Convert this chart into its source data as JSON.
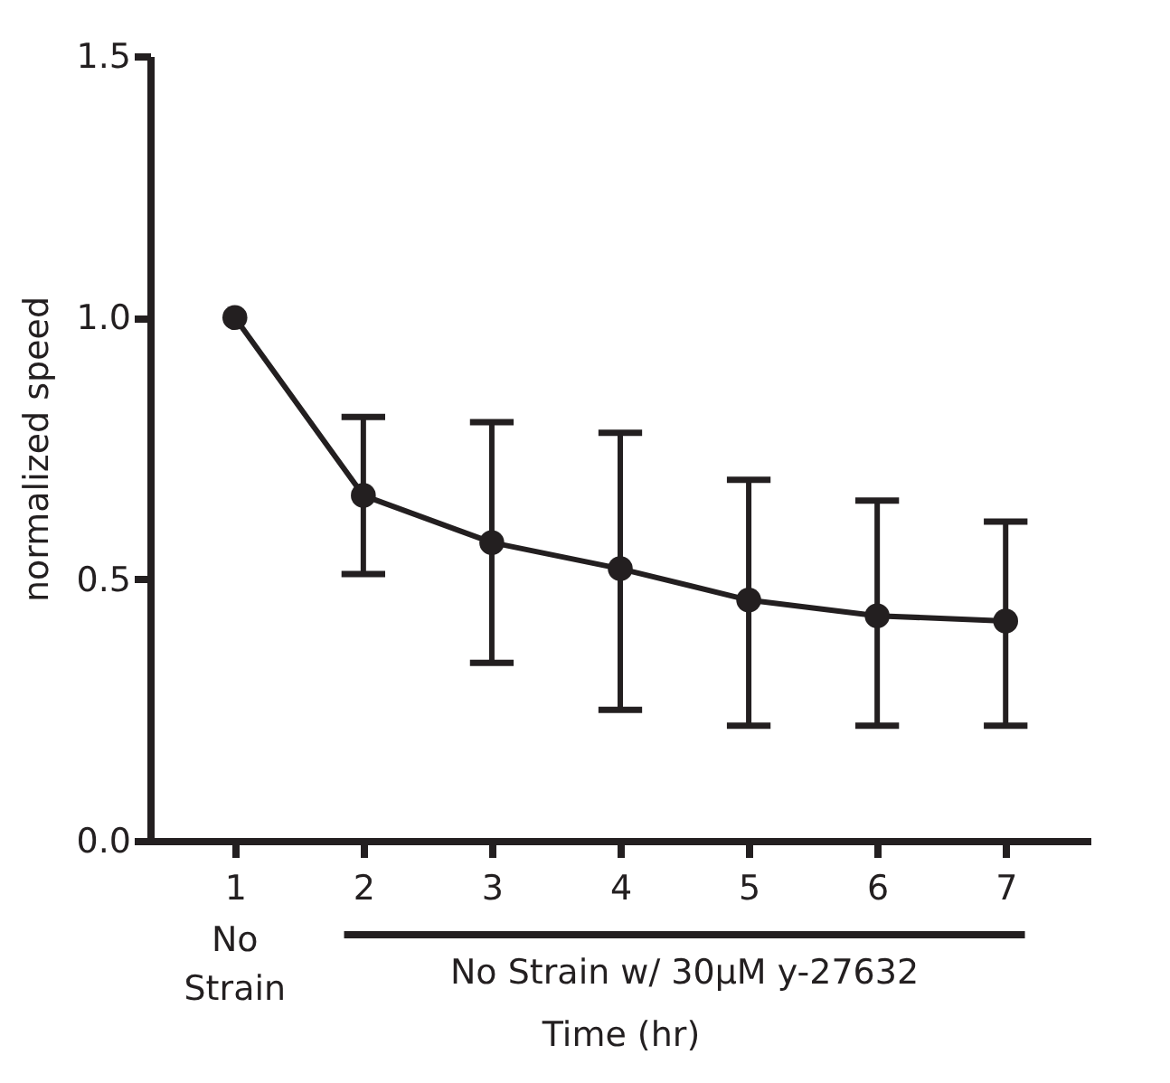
{
  "chart_data": {
    "type": "line",
    "xlabel": "Time (hr)",
    "ylabel": "normalized speed",
    "categories": [
      "1",
      "2",
      "3",
      "4",
      "5",
      "6",
      "7"
    ],
    "values": [
      1.0,
      0.66,
      0.57,
      0.52,
      0.46,
      0.43,
      0.42
    ],
    "errors": [
      null,
      [
        0.51,
        0.81
      ],
      [
        0.34,
        0.8
      ],
      [
        0.25,
        0.78
      ],
      [
        0.22,
        0.69
      ],
      [
        0.22,
        0.65
      ],
      [
        0.22,
        0.61
      ]
    ],
    "color": "#231f20",
    "ylim": [
      0,
      1.5
    ],
    "yticks": [
      {
        "value": 0,
        "label": "0.0"
      },
      {
        "value": 0.5,
        "label": "0.5"
      },
      {
        "value": 1,
        "label": "1.0"
      },
      {
        "value": 1.5,
        "label": "1.5"
      }
    ],
    "annotations": [
      "No Strain",
      "No Strain w/ 30μM y-27632"
    ],
    "grid": false,
    "marker": "circle",
    "line_style": "solid"
  }
}
